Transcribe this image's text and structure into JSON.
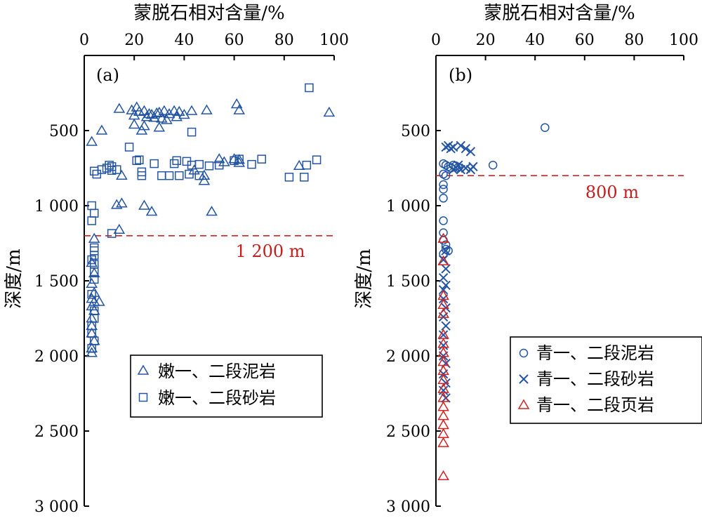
{
  "chart_data": [
    {
      "type": "scatter",
      "panel_label": "(a)",
      "xlabel": "蒙脱石相对含量/%",
      "ylabel": "深度/m",
      "x_axis_position": "top",
      "y_inverted": true,
      "xlim": [
        0,
        100
      ],
      "ylim": [
        0,
        3000
      ],
      "x_ticks": [
        0,
        20,
        40,
        60,
        80,
        100
      ],
      "x_tick_labels": [
        "0",
        "20",
        "40",
        "60",
        "80",
        "100"
      ],
      "y_ticks": [
        500,
        1000,
        1500,
        2000,
        2500,
        3000
      ],
      "y_tick_labels": [
        "500",
        "1 000",
        "1 500",
        "2 000",
        "2 500",
        "3 000"
      ],
      "grid": false,
      "legend_position": "bottom-right",
      "reference_line": {
        "y": 1200,
        "label": "1 200 m",
        "color": "#d42222"
      },
      "series": [
        {
          "name": "嫩一、二段泥岩",
          "marker": "triangle",
          "color": "#2455a4",
          "points": [
            [
              14,
              355
            ],
            [
              19,
              365
            ],
            [
              21,
              345
            ],
            [
              22,
              375
            ],
            [
              24,
              370
            ],
            [
              26,
              390
            ],
            [
              27,
              395
            ],
            [
              29,
              385
            ],
            [
              30,
              380
            ],
            [
              32,
              370
            ],
            [
              34,
              390
            ],
            [
              36,
              370
            ],
            [
              38,
              375
            ],
            [
              43,
              370
            ],
            [
              49,
              365
            ],
            [
              61,
              325
            ],
            [
              62,
              365
            ],
            [
              98,
              380
            ],
            [
              20,
              400
            ],
            [
              25,
              410
            ],
            [
              28,
              415
            ],
            [
              31,
              420
            ],
            [
              33,
              430
            ],
            [
              37,
              410
            ],
            [
              40,
              395
            ],
            [
              20,
              460
            ],
            [
              24,
              470
            ],
            [
              30,
              480
            ],
            [
              7,
              500
            ],
            [
              23,
              500
            ],
            [
              3,
              575
            ],
            [
              54,
              690
            ],
            [
              60,
              690
            ],
            [
              62,
              695
            ],
            [
              56,
              710
            ],
            [
              62,
              715
            ],
            [
              86,
              735
            ],
            [
              44,
              765
            ],
            [
              48,
              800
            ],
            [
              15,
              800
            ],
            [
              48,
              835
            ],
            [
              13,
              995
            ],
            [
              15,
              985
            ],
            [
              24,
              1000
            ],
            [
              27,
              1040
            ],
            [
              51,
              1040
            ],
            [
              14,
              1160
            ],
            [
              4,
              1220
            ],
            [
              3,
              1380
            ],
            [
              4,
              1450
            ],
            [
              3,
              1520
            ],
            [
              4,
              1580
            ],
            [
              3,
              1620
            ],
            [
              4,
              1640
            ],
            [
              6,
              1640
            ],
            [
              3,
              1670
            ],
            [
              4,
              1700
            ],
            [
              3,
              1750
            ],
            [
              3,
              1800
            ],
            [
              3,
              1850
            ],
            [
              4,
              1900
            ],
            [
              3,
              1950
            ],
            [
              3,
              1980
            ]
          ]
        },
        {
          "name": "嫩一、二段砂岩",
          "marker": "square",
          "color": "#2455a4",
          "points": [
            [
              90,
              215
            ],
            [
              43,
              510
            ],
            [
              18,
              610
            ],
            [
              22,
              695
            ],
            [
              21,
              700
            ],
            [
              28,
              720
            ],
            [
              36,
              720
            ],
            [
              37,
              700
            ],
            [
              41,
              705
            ],
            [
              43,
              730
            ],
            [
              46,
              725
            ],
            [
              50,
              735
            ],
            [
              54,
              730
            ],
            [
              60,
              700
            ],
            [
              62,
              690
            ],
            [
              67,
              725
            ],
            [
              71,
              690
            ],
            [
              89,
              730
            ],
            [
              93,
              695
            ],
            [
              10,
              730
            ],
            [
              11,
              740
            ],
            [
              9,
              750
            ],
            [
              7,
              760
            ],
            [
              11,
              765
            ],
            [
              13,
              760
            ],
            [
              4,
              770
            ],
            [
              5,
              790
            ],
            [
              23,
              775
            ],
            [
              23,
              800
            ],
            [
              31,
              800
            ],
            [
              34,
              800
            ],
            [
              38,
              800
            ],
            [
              42,
              790
            ],
            [
              46,
              800
            ],
            [
              82,
              810
            ],
            [
              88,
              810
            ],
            [
              3,
              1000
            ],
            [
              4,
              1050
            ],
            [
              3,
              1100
            ],
            [
              11,
              1185
            ],
            [
              4,
              1280
            ],
            [
              4,
              1300
            ],
            [
              4,
              1330
            ],
            [
              3,
              1360
            ],
            [
              4,
              1390
            ],
            [
              4,
              1440
            ],
            [
              4,
              1490
            ],
            [
              3,
              1590
            ],
            [
              4,
              1700
            ],
            [
              4,
              1750
            ],
            [
              3,
              1800
            ],
            [
              3,
              1850
            ],
            [
              4,
              1900
            ],
            [
              3,
              1950
            ]
          ]
        }
      ]
    },
    {
      "type": "scatter",
      "panel_label": "(b)",
      "xlabel": "蒙脱石相对含量/%",
      "ylabel": "深度/m",
      "x_axis_position": "top",
      "y_inverted": true,
      "xlim": [
        0,
        100
      ],
      "ylim": [
        0,
        3000
      ],
      "x_ticks": [
        0,
        20,
        40,
        60,
        80,
        100
      ],
      "x_tick_labels": [
        "0",
        "20",
        "40",
        "60",
        "80",
        "100"
      ],
      "y_ticks": [
        500,
        1000,
        1500,
        2000,
        2500,
        3000
      ],
      "y_tick_labels": [
        "500",
        "1 000",
        "1 500",
        "2 000",
        "2 500",
        "3 000"
      ],
      "grid": false,
      "legend_position": "bottom-right",
      "reference_line": {
        "y": 800,
        "label": "800 m",
        "color": "#d42222"
      },
      "series": [
        {
          "name": "青一、二段泥岩",
          "marker": "circle",
          "color": "#2455a4",
          "points": [
            [
              44,
              480
            ],
            [
              23,
              730
            ],
            [
              3,
              720
            ],
            [
              4,
              730
            ],
            [
              5,
              740
            ],
            [
              6,
              750
            ],
            [
              7,
              730
            ],
            [
              8,
              735
            ],
            [
              9,
              745
            ],
            [
              3,
              790
            ],
            [
              4,
              800
            ],
            [
              3,
              860
            ],
            [
              3,
              890
            ],
            [
              3,
              950
            ],
            [
              3,
              1100
            ],
            [
              3,
              1180
            ],
            [
              3,
              1230
            ],
            [
              4,
              1260
            ],
            [
              4,
              1290
            ],
            [
              3,
              1320
            ],
            [
              5,
              1300
            ]
          ]
        },
        {
          "name": "青一、二段砂岩",
          "marker": "x",
          "color": "#2455a4",
          "points": [
            [
              4,
              610
            ],
            [
              5,
              600
            ],
            [
              6,
              620
            ],
            [
              7,
              610
            ],
            [
              10,
              600
            ],
            [
              12,
              620
            ],
            [
              14,
              640
            ],
            [
              15,
              740
            ],
            [
              12,
              750
            ],
            [
              10,
              760
            ],
            [
              8,
              745
            ],
            [
              7,
              760
            ],
            [
              9,
              730
            ],
            [
              14,
              760
            ],
            [
              4,
              1300
            ],
            [
              3,
              1360
            ],
            [
              4,
              1420
            ],
            [
              3,
              1480
            ],
            [
              4,
              1530
            ],
            [
              3,
              1560
            ],
            [
              3,
              1620
            ],
            [
              4,
              1680
            ],
            [
              3,
              1740
            ],
            [
              4,
              1800
            ],
            [
              3,
              1860
            ],
            [
              3,
              1930
            ],
            [
              3,
              2000
            ],
            [
              4,
              2050
            ],
            [
              3,
              2120
            ],
            [
              4,
              2180
            ],
            [
              3,
              2230
            ],
            [
              4,
              2280
            ]
          ]
        },
        {
          "name": "青一、二段页岩",
          "marker": "triangle",
          "color": "#d42222",
          "points": [
            [
              3,
              1220
            ],
            [
              3,
              1370
            ],
            [
              3,
              1600
            ],
            [
              3,
              1660
            ],
            [
              3,
              1720
            ],
            [
              3,
              1860
            ],
            [
              3,
              1920
            ],
            [
              3,
              1980
            ],
            [
              3,
              2040
            ],
            [
              3,
              2100
            ],
            [
              3,
              2160
            ],
            [
              3,
              2220
            ],
            [
              3,
              2280
            ],
            [
              3,
              2340
            ],
            [
              3,
              2400
            ],
            [
              3,
              2460
            ],
            [
              3,
              2520
            ],
            [
              3,
              2580
            ],
            [
              3,
              2800
            ]
          ]
        }
      ]
    }
  ]
}
